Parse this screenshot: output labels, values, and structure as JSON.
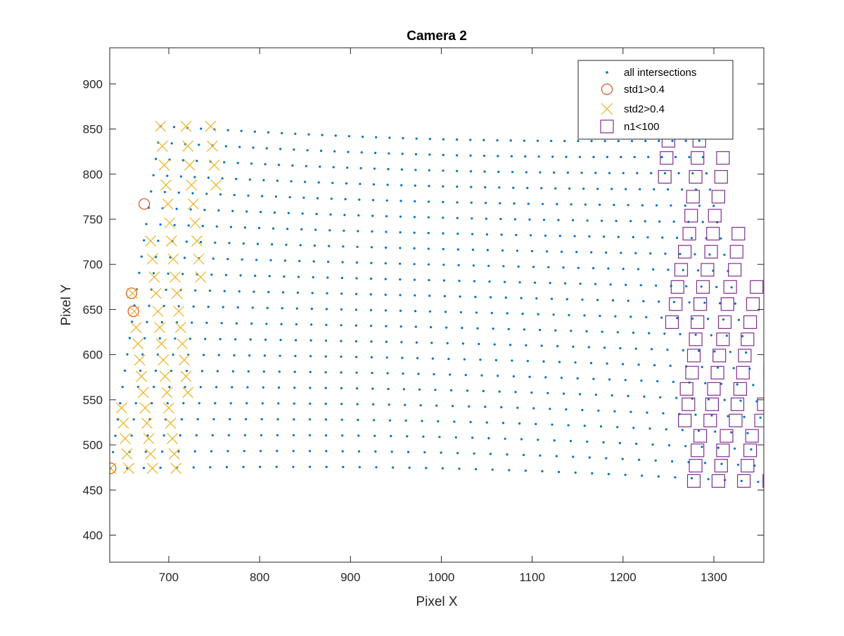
{
  "chart_data": {
    "type": "scatter",
    "title": "Camera 2",
    "xlabel": "Pixel X",
    "ylabel": "Pixel Y",
    "xlim": [
      635,
      1355
    ],
    "ylim": [
      370,
      940
    ],
    "xticks": [
      700,
      800,
      900,
      1000,
      1100,
      1200,
      1300
    ],
    "yticks": [
      400,
      450,
      500,
      550,
      600,
      650,
      700,
      750,
      800,
      850,
      900
    ],
    "grid": false,
    "legend_position": "top-right",
    "series": [
      {
        "name": "all intersections",
        "marker": "point",
        "color": "#0072BD"
      },
      {
        "name": "std1>0.4",
        "marker": "circle",
        "color": "#D95319",
        "points": [
          [
            636,
            474
          ],
          [
            673,
            767
          ],
          [
            659,
            668
          ],
          [
            661,
            648
          ]
        ]
      },
      {
        "name": "std2>0.4",
        "marker": "x",
        "color": "#EDB120",
        "points": [
          [
            691,
            853
          ],
          [
            719,
            853
          ],
          [
            746,
            853
          ],
          [
            693,
            831
          ],
          [
            721,
            831
          ],
          [
            748,
            831
          ],
          [
            695,
            810
          ],
          [
            723,
            810
          ],
          [
            750,
            810
          ],
          [
            697,
            788
          ],
          [
            725,
            788
          ],
          [
            752,
            788
          ],
          [
            699,
            767
          ],
          [
            727,
            767
          ],
          [
            701,
            746
          ],
          [
            729,
            746
          ],
          [
            680,
            726
          ],
          [
            703,
            726
          ],
          [
            731,
            726
          ],
          [
            682,
            706
          ],
          [
            705,
            706
          ],
          [
            733,
            706
          ],
          [
            684,
            686
          ],
          [
            707,
            686
          ],
          [
            735,
            686
          ],
          [
            660,
            668
          ],
          [
            686,
            668
          ],
          [
            709,
            668
          ],
          [
            662,
            648
          ],
          [
            688,
            648
          ],
          [
            711,
            648
          ],
          [
            664,
            630
          ],
          [
            690,
            630
          ],
          [
            713,
            630
          ],
          [
            666,
            612
          ],
          [
            692,
            612
          ],
          [
            715,
            612
          ],
          [
            668,
            594
          ],
          [
            694,
            594
          ],
          [
            717,
            594
          ],
          [
            670,
            576
          ],
          [
            696,
            576
          ],
          [
            719,
            576
          ],
          [
            672,
            558
          ],
          [
            698,
            558
          ],
          [
            721,
            558
          ],
          [
            648,
            541
          ],
          [
            674,
            541
          ],
          [
            700,
            541
          ],
          [
            650,
            524
          ],
          [
            676,
            524
          ],
          [
            702,
            524
          ],
          [
            652,
            507
          ],
          [
            678,
            507
          ],
          [
            704,
            507
          ],
          [
            654,
            490
          ],
          [
            680,
            490
          ],
          [
            706,
            490
          ],
          [
            636,
            474
          ],
          [
            656,
            474
          ],
          [
            682,
            474
          ],
          [
            708,
            474
          ]
        ]
      },
      {
        "name": "n1<100",
        "marker": "square",
        "color": "#7E2F8E",
        "points": [
          [
            1250,
            837
          ],
          [
            1284,
            837
          ],
          [
            1248,
            818
          ],
          [
            1282,
            818
          ],
          [
            1310,
            818
          ],
          [
            1246,
            797
          ],
          [
            1280,
            797
          ],
          [
            1308,
            797
          ],
          [
            1277,
            775
          ],
          [
            1305,
            775
          ],
          [
            1275,
            754
          ],
          [
            1301,
            754
          ],
          [
            1273,
            734
          ],
          [
            1299,
            734
          ],
          [
            1327,
            734
          ],
          [
            1268,
            714
          ],
          [
            1297,
            714
          ],
          [
            1325,
            714
          ],
          [
            1264,
            694
          ],
          [
            1293,
            694
          ],
          [
            1323,
            694
          ],
          [
            1260,
            675
          ],
          [
            1288,
            675
          ],
          [
            1318,
            675
          ],
          [
            1347,
            675
          ],
          [
            1258,
            656
          ],
          [
            1285,
            656
          ],
          [
            1315,
            656
          ],
          [
            1343,
            656
          ],
          [
            1254,
            636
          ],
          [
            1282,
            636
          ],
          [
            1312,
            636
          ],
          [
            1340,
            636
          ],
          [
            1280,
            617
          ],
          [
            1310,
            617
          ],
          [
            1337,
            617
          ],
          [
            1278,
            599
          ],
          [
            1306,
            599
          ],
          [
            1334,
            599
          ],
          [
            1276,
            580
          ],
          [
            1304,
            580
          ],
          [
            1332,
            580
          ],
          [
            1362,
            580
          ],
          [
            1270,
            562
          ],
          [
            1300,
            562
          ],
          [
            1329,
            562
          ],
          [
            1272,
            545
          ],
          [
            1298,
            545
          ],
          [
            1326,
            545
          ],
          [
            1355,
            545
          ],
          [
            1268,
            527
          ],
          [
            1296,
            527
          ],
          [
            1324,
            527
          ],
          [
            1352,
            527
          ],
          [
            1285,
            510
          ],
          [
            1314,
            510
          ],
          [
            1342,
            510
          ],
          [
            1282,
            494
          ],
          [
            1310,
            494
          ],
          [
            1340,
            494
          ],
          [
            1280,
            477
          ],
          [
            1308,
            477
          ],
          [
            1337,
            477
          ],
          [
            1367,
            477
          ],
          [
            1278,
            460
          ],
          [
            1305,
            460
          ],
          [
            1333,
            460
          ],
          [
            1361,
            460
          ]
        ]
      }
    ]
  }
}
